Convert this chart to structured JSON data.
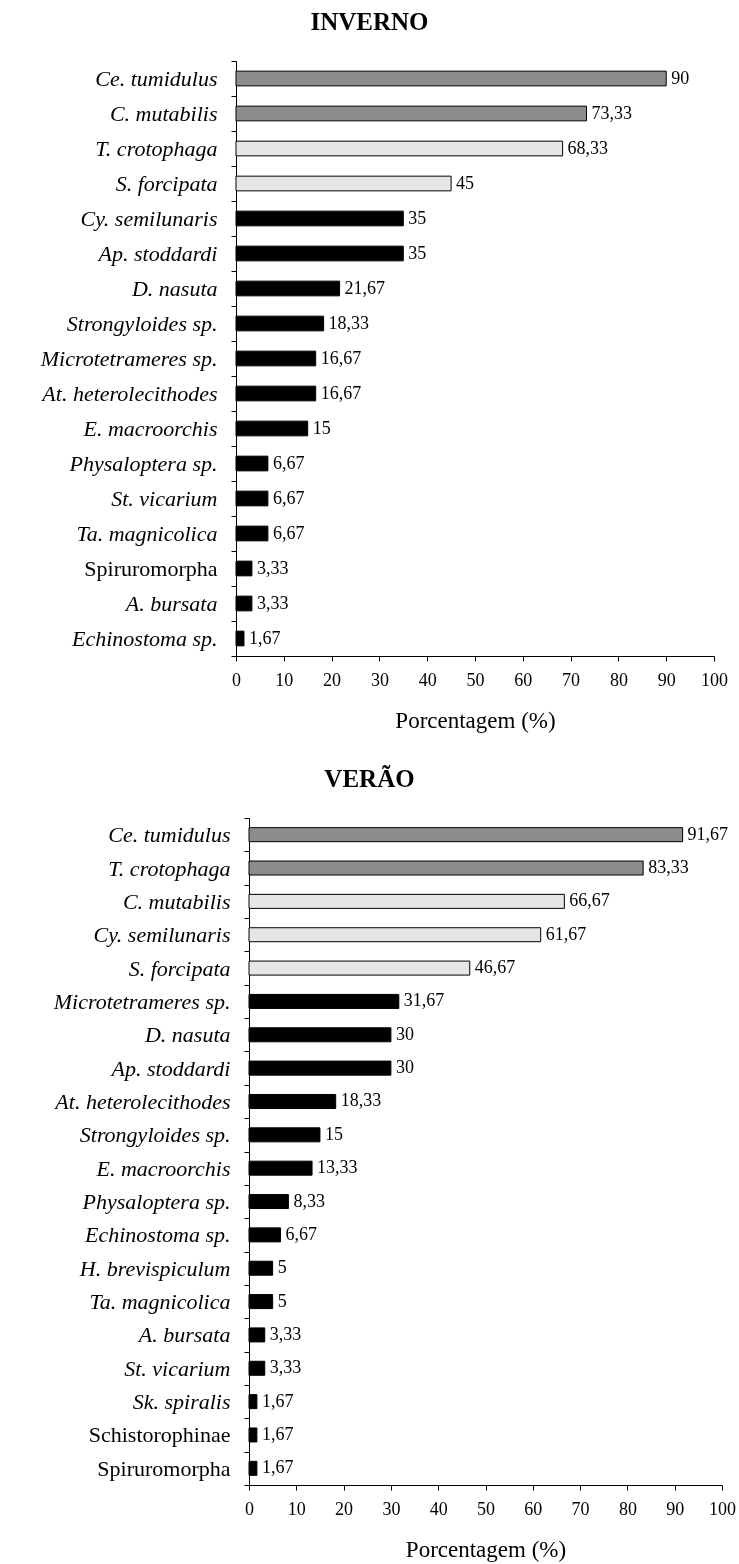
{
  "chart_data": [
    {
      "type": "bar",
      "orientation": "horizontal",
      "title": "INVERNO",
      "xlabel": "Porcentagem (%)",
      "categories": [
        "Ce. tumidulus",
        "C. mutabilis",
        "T. crotophaga",
        "S. forcipata",
        "Cy. semilunaris",
        "Ap. stoddardi",
        "D. nasuta",
        "Strongyloides sp.",
        "Microtetrameres sp.",
        "At. heterolecithodes",
        "E. macroorchis",
        "Physaloptera sp.",
        "St. vicarium",
        "Ta. magnicolica",
        "Spiruromorpha",
        "A. bursata",
        "Echinostoma sp."
      ],
      "values": [
        90,
        73.33,
        68.33,
        45,
        35,
        35,
        21.67,
        18.33,
        16.67,
        16.67,
        15,
        6.67,
        6.67,
        6.67,
        3.33,
        3.33,
        1.67
      ],
      "colors": [
        "#8c8c8c",
        "#8c8c8c",
        "#e6e6e6",
        "#e6e6e6",
        "#000000",
        "#000000",
        "#000000",
        "#000000",
        "#000000",
        "#000000",
        "#000000",
        "#000000",
        "#000000",
        "#000000",
        "#000000",
        "#000000",
        "#000000"
      ],
      "value_labels": [
        "90",
        "73,33",
        "68,33",
        "45",
        "35",
        "35",
        "21,67",
        "18,33",
        "16,67",
        "16,67",
        "15",
        "6,67",
        "6,67",
        "6,67",
        "3,33",
        "3,33",
        "1,67"
      ],
      "xlim": [
        0,
        100
      ],
      "xticks": [
        0,
        10,
        20,
        30,
        40,
        50,
        60,
        70,
        80,
        90,
        100
      ]
    },
    {
      "type": "bar",
      "orientation": "horizontal",
      "title": "VERÃO",
      "xlabel": "Porcentagem (%)",
      "categories": [
        "Ce. tumidulus",
        "T. crotophaga",
        "C. mutabilis",
        "Cy. semilunaris",
        "S. forcipata",
        "Microtetrameres sp.",
        "D. nasuta",
        "Ap. stoddardi",
        "At. heterolecithodes",
        "Strongyloides sp.",
        "E. macroorchis",
        "Physaloptera sp.",
        "Echinostoma sp.",
        "H. brevispiculum",
        "Ta. magnicolica",
        "A. bursata",
        "St. vicarium",
        "Sk. spiralis",
        "Schistorophinae",
        "Spiruromorpha"
      ],
      "values": [
        91.67,
        83.33,
        66.67,
        61.67,
        46.67,
        31.67,
        30,
        30,
        18.33,
        15,
        13.33,
        8.33,
        6.67,
        5,
        5,
        3.33,
        3.33,
        1.67,
        1.67,
        1.67
      ],
      "colors": [
        "#8c8c8c",
        "#8c8c8c",
        "#e6e6e6",
        "#e6e6e6",
        "#e6e6e6",
        "#000000",
        "#000000",
        "#000000",
        "#000000",
        "#000000",
        "#000000",
        "#000000",
        "#000000",
        "#000000",
        "#000000",
        "#000000",
        "#000000",
        "#000000",
        "#000000",
        "#000000"
      ],
      "value_labels": [
        "91,67",
        "83,33",
        "66,67",
        "61,67",
        "46,67",
        "31,67",
        "30",
        "30",
        "18,33",
        "15",
        "13,33",
        "8,33",
        "6,67",
        "5",
        "5",
        "3,33",
        "3,33",
        "1,67",
        "1,67",
        "1,67"
      ],
      "xlim": [
        0,
        100
      ],
      "xticks": [
        0,
        10,
        20,
        30,
        40,
        50,
        60,
        70,
        80,
        90,
        100
      ]
    }
  ]
}
